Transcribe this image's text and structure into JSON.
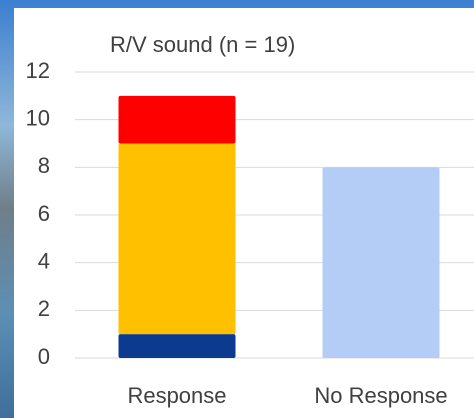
{
  "chart_data": {
    "type": "stacked-bar",
    "title": "R/V sound (n = 19)",
    "categories": [
      "Response",
      "No Response"
    ],
    "series": [
      {
        "color": "#0b3a8f",
        "values": [
          1,
          null
        ]
      },
      {
        "color": "#ffc000",
        "values": [
          8,
          null
        ]
      },
      {
        "color": "#ff0000",
        "values": [
          2,
          null
        ]
      },
      {
        "color": "#b4cdf6",
        "values": [
          null,
          8
        ]
      }
    ],
    "ylim": [
      0,
      12
    ],
    "yticks": [
      0,
      2,
      4,
      6,
      8,
      10,
      12
    ],
    "grid": true
  }
}
